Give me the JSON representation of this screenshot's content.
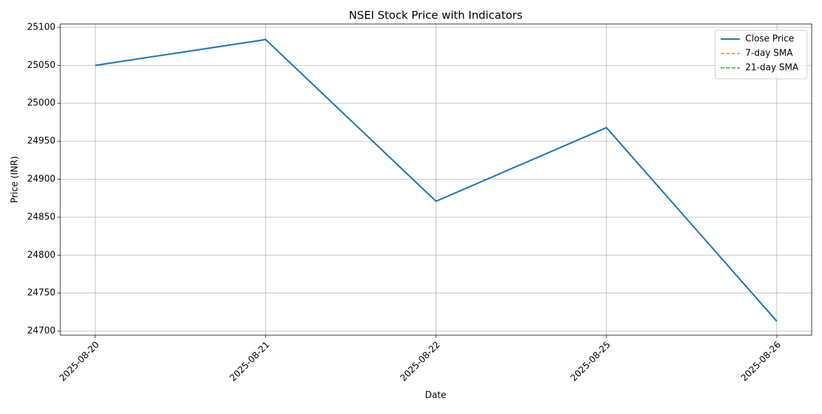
{
  "chart_data": {
    "type": "line",
    "title": "NSEI Stock Price with Indicators",
    "x_label": "Date",
    "y_label": "Price (INR)",
    "categories": [
      "2025-08-20",
      "2025-08-21",
      "2025-08-22",
      "2025-08-25",
      "2025-08-26"
    ],
    "series": [
      {
        "name": "Close Price",
        "color": "#1f77b4",
        "style": "solid",
        "values": [
          25050,
          25084,
          24871,
          24968,
          24713
        ]
      },
      {
        "name": "7-day SMA",
        "color": "#ff7f0e",
        "style": "dashed",
        "values": [
          null,
          null,
          null,
          null,
          null
        ]
      },
      {
        "name": "21-day SMA",
        "color": "#2ca02c",
        "style": "dashed",
        "values": [
          null,
          null,
          null,
          null,
          null
        ]
      }
    ],
    "ylim": [
      24694.6,
      25104.5
    ],
    "yticks": [
      24700,
      24750,
      24800,
      24850,
      24900,
      24950,
      25000,
      25050,
      25100
    ],
    "grid": true,
    "legend": "upper right"
  }
}
